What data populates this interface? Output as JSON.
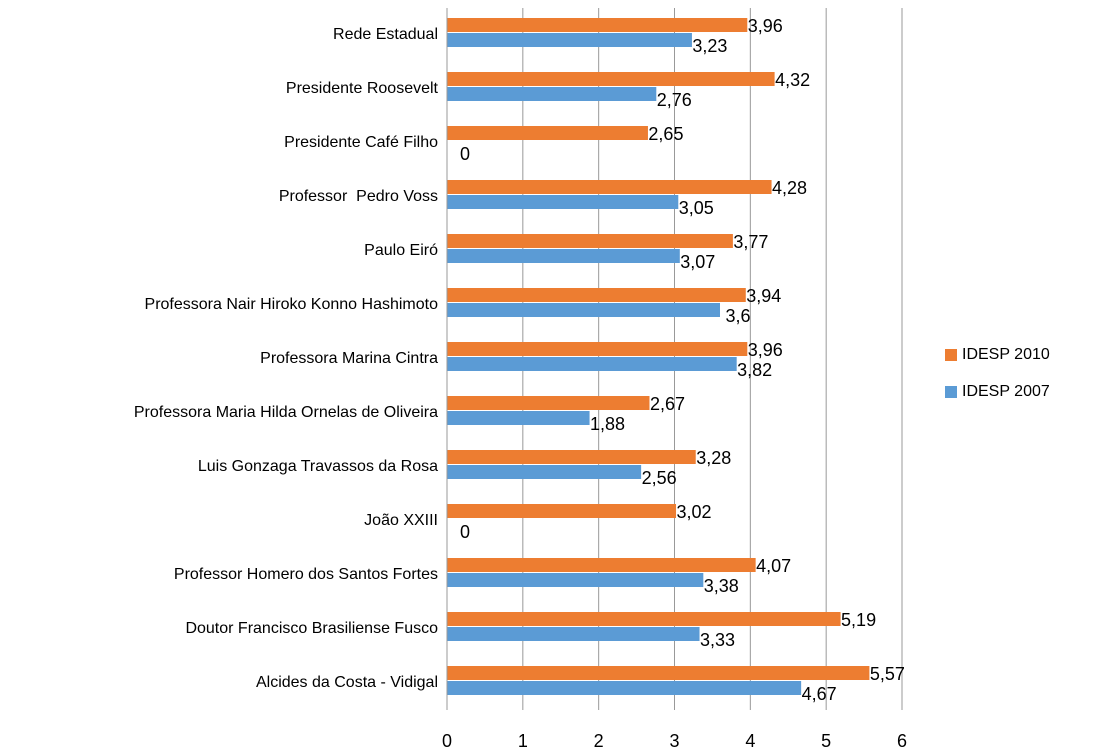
{
  "chart_data": {
    "type": "bar",
    "orientation": "horizontal",
    "categories": [
      "Rede Estadual",
      "Presidente Roosevelt",
      "Presidente Café Filho",
      "Professor  Pedro Voss",
      "Paulo Eiró",
      "Professora Nair Hiroko Konno Hashimoto",
      "Professora Marina Cintra",
      "Professora Maria Hilda Ornelas de Oliveira",
      "Luis Gonzaga Travassos da Rosa",
      "João XXIII",
      "Professor Homero dos Santos Fortes",
      "Doutor Francisco Brasiliense Fusco",
      "Alcides da Costa - Vidigal"
    ],
    "series": [
      {
        "name": "IDESP 2010",
        "color": "#ed7d31",
        "values": [
          3.96,
          4.32,
          2.65,
          4.28,
          3.77,
          3.94,
          3.96,
          2.67,
          3.28,
          3.02,
          4.07,
          5.19,
          5.57
        ],
        "value_labels": [
          "3,96",
          "4,32",
          "2,65",
          "4,28",
          "3,77",
          "3,94",
          "3,96",
          "2,67",
          "3,28",
          "3,02",
          "4,07",
          "5,19",
          "5,57"
        ]
      },
      {
        "name": "IDESP 2007",
        "color": "#5b9bd5",
        "values": [
          3.23,
          2.76,
          0,
          3.05,
          3.07,
          3.6,
          3.82,
          1.88,
          2.56,
          0,
          3.38,
          3.33,
          4.67
        ],
        "value_labels": [
          "3,23",
          "2,76",
          "0",
          "3,05",
          "3,07",
          "3,6",
          "3,82",
          "1,88",
          "2,56",
          "0",
          "3,38",
          "3,33",
          "4,67"
        ]
      }
    ],
    "xlim": [
      0,
      6
    ],
    "xticks": [
      0,
      1,
      2,
      3,
      4,
      5,
      6
    ],
    "grid": true,
    "legend": "right"
  }
}
